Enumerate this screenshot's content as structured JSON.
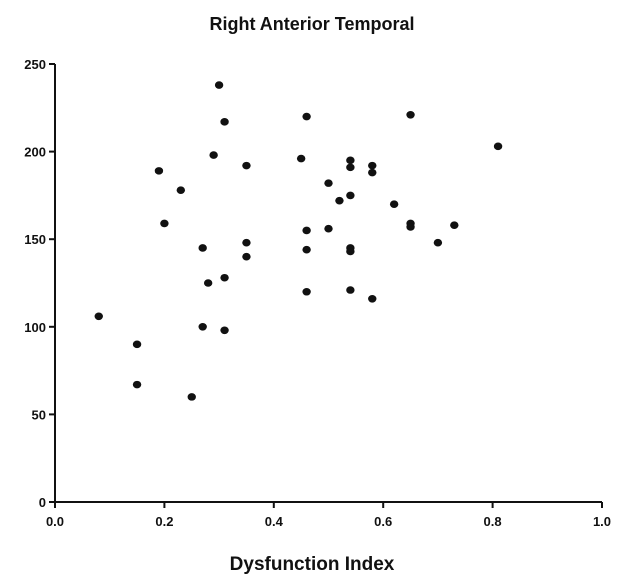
{
  "chart_data": {
    "type": "scatter",
    "title": "Right Anterior Temporal",
    "xlabel": "Dysfunction Index",
    "ylabel": "",
    "xlim": [
      0.0,
      1.0
    ],
    "ylim": [
      0,
      250
    ],
    "x_ticks": [
      0.0,
      0.2,
      0.4,
      0.6,
      0.8,
      1.0
    ],
    "x_tick_labels": [
      "0.0",
      "0.2",
      "0.4",
      "0.6",
      "0.8",
      "1.0"
    ],
    "y_ticks": [
      0,
      50,
      100,
      150,
      200,
      250
    ],
    "y_tick_labels": [
      "0",
      "50",
      "100",
      "150",
      "200",
      "250"
    ],
    "grid": false,
    "legend": "none",
    "point_color": "#111111",
    "series": [
      {
        "points": [
          [
            0.08,
            106
          ],
          [
            0.15,
            90
          ],
          [
            0.15,
            67
          ],
          [
            0.19,
            189
          ],
          [
            0.2,
            159
          ],
          [
            0.23,
            178
          ],
          [
            0.25,
            60
          ],
          [
            0.27,
            145
          ],
          [
            0.27,
            100
          ],
          [
            0.28,
            125
          ],
          [
            0.29,
            198
          ],
          [
            0.3,
            238
          ],
          [
            0.31,
            217
          ],
          [
            0.31,
            128
          ],
          [
            0.31,
            98
          ],
          [
            0.35,
            192
          ],
          [
            0.35,
            148
          ],
          [
            0.35,
            140
          ],
          [
            0.45,
            196
          ],
          [
            0.46,
            220
          ],
          [
            0.46,
            155
          ],
          [
            0.46,
            144
          ],
          [
            0.46,
            120
          ],
          [
            0.5,
            182
          ],
          [
            0.5,
            156
          ],
          [
            0.52,
            172
          ],
          [
            0.54,
            195
          ],
          [
            0.54,
            191
          ],
          [
            0.54,
            175
          ],
          [
            0.54,
            145
          ],
          [
            0.54,
            143
          ],
          [
            0.54,
            121
          ],
          [
            0.58,
            192
          ],
          [
            0.58,
            188
          ],
          [
            0.58,
            116
          ],
          [
            0.62,
            170
          ],
          [
            0.65,
            221
          ],
          [
            0.65,
            159
          ],
          [
            0.65,
            157
          ],
          [
            0.7,
            148
          ],
          [
            0.73,
            158
          ],
          [
            0.81,
            203
          ]
        ]
      }
    ]
  }
}
